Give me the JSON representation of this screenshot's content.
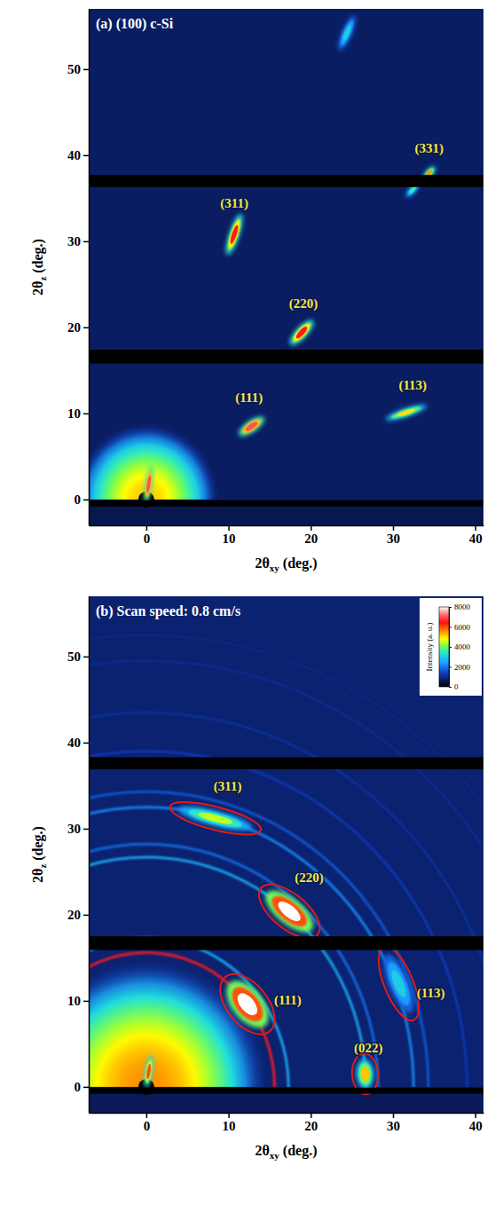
{
  "chart_data": [
    {
      "type": "diffraction",
      "title": "(a) (100) c-Si",
      "x_label": "2θxy (deg.)",
      "y_label": "2θz (deg.)",
      "xlim": [
        -7,
        41
      ],
      "ylim": [
        -3,
        57
      ],
      "xticks": [
        0,
        10,
        20,
        30,
        40
      ],
      "yticks": [
        0,
        10,
        20,
        30,
        40,
        50
      ],
      "marker": "streak",
      "colorbar": {
        "range": [
          0,
          8000
        ]
      },
      "background_intensity": 700,
      "ring_center": [
        0,
        0
      ],
      "detector_gaps": [
        [
          -0.8,
          -0.1
        ],
        [
          15.8,
          17.4
        ],
        [
          36.3,
          37.7
        ]
      ],
      "halo": {
        "radius": 9,
        "intensity": 5200
      },
      "rings": [],
      "peaks": [
        {
          "label": "(111)",
          "x": 12.8,
          "y": 8.5,
          "intensity": 7000,
          "length": 2.4,
          "width": 0.9
        },
        {
          "label": "(220)",
          "x": 18.9,
          "y": 19.4,
          "intensity": 6500,
          "length": 2.6,
          "width": 0.9
        },
        {
          "label": "(311)",
          "x": 10.7,
          "y": 30.8,
          "intensity": 6500,
          "length": 3.4,
          "width": 0.8
        },
        {
          "label": "(113)",
          "x": 31.6,
          "y": 10.1,
          "intensity": 5000,
          "length": 3.4,
          "width": 0.7
        },
        {
          "label": "(331)",
          "x": 34.4,
          "y": 37.9,
          "intensity": 5500,
          "length": 1.4,
          "width": 0.6
        },
        {
          "label": null,
          "x": 32.4,
          "y": 36.0,
          "intensity": 3500,
          "length": 1.6,
          "width": 0.6
        },
        {
          "label": null,
          "x": 24.4,
          "y": 54.2,
          "intensity": 3000,
          "length": 3.0,
          "width": 0.8
        },
        {
          "label": null,
          "x": 0.3,
          "y": 1.8,
          "intensity": 7000,
          "length": 3.0,
          "width": 0.6
        }
      ]
    },
    {
      "type": "diffraction",
      "title": "(b) Scan speed: 0.8 cm/s",
      "x_label": "2θxy (deg.)",
      "y_label": "2θz (deg.)",
      "xlim": [
        -7,
        41
      ],
      "ylim": [
        -3,
        57
      ],
      "xticks": [
        0,
        10,
        20,
        30,
        40
      ],
      "yticks": [
        0,
        10,
        20,
        30,
        40,
        50
      ],
      "marker": "arc",
      "colorbar": {
        "label": "Intensity (a. u.)",
        "range": [
          0,
          8000
        ],
        "ticks": [
          0,
          2000,
          4000,
          6000,
          8000
        ]
      },
      "background_intensity": 800,
      "ring_center": [
        0,
        0
      ],
      "detector_gaps": [
        [
          -0.8,
          -0.1
        ],
        [
          15.9,
          17.5
        ],
        [
          36.9,
          38.3
        ]
      ],
      "halo": {
        "radius": 15,
        "intensity": 5600
      },
      "rings": [
        {
          "radius": 15.6,
          "intensity": 6500
        },
        {
          "radius": 17.3,
          "intensity": 2600
        },
        {
          "radius": 26.7,
          "intensity": 2600
        },
        {
          "radius": 28.2,
          "intensity": 1900
        },
        {
          "radius": 32.5,
          "intensity": 2200
        },
        {
          "radius": 34.3,
          "intensity": 1700
        },
        {
          "radius": 39.0,
          "intensity": 1300
        },
        {
          "radius": 43.5,
          "intensity": 1100
        },
        {
          "radius": 49.5,
          "intensity": 1000
        },
        {
          "radius": 52.5,
          "intensity": 900
        }
      ],
      "peaks": [
        {
          "label": "(311)",
          "x": 8.4,
          "y": 31.2,
          "intensity": 4500,
          "length": 6.0,
          "width": 1.2
        },
        {
          "label": "(220)",
          "x": 17.4,
          "y": 20.4,
          "intensity": 8000,
          "length": 4.6,
          "width": 2.0
        },
        {
          "label": "(111)",
          "x": 12.3,
          "y": 9.6,
          "intensity": 8000,
          "length": 4.4,
          "width": 2.4
        },
        {
          "label": "(113)",
          "x": 30.7,
          "y": 12.0,
          "intensity": 3000,
          "length": 5.0,
          "width": 1.6
        },
        {
          "label": "(022)",
          "x": 26.6,
          "y": 1.5,
          "intensity": 5200,
          "length": 2.4,
          "width": 1.4
        },
        {
          "label": null,
          "x": 0.3,
          "y": 1.8,
          "intensity": 6000,
          "length": 2.6,
          "width": 0.6,
          "marker": "streak"
        }
      ]
    }
  ]
}
